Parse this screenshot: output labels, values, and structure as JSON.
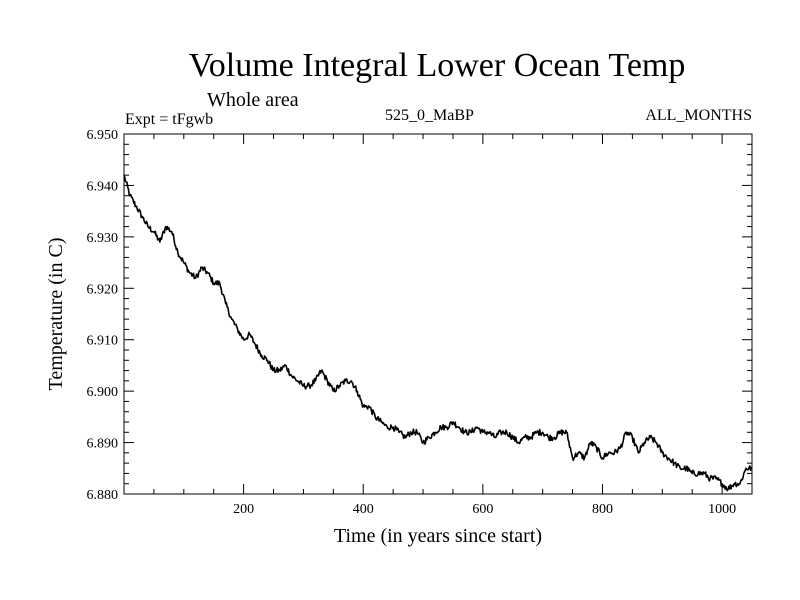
{
  "chart_data": {
    "type": "line",
    "title": "Volume Integral Lower Ocean Temp",
    "subtitle": "Whole area",
    "expt_label": "Expt = tFgwb",
    "run_label": "525_0_MaBP",
    "months_label": "ALL_MONTHS",
    "xlabel": "Time (in years since start)",
    "ylabel": "Temperature (in C)",
    "xlim": [
      0,
      1050
    ],
    "ylim": [
      6.88,
      6.95
    ],
    "x_ticks": [
      200,
      400,
      600,
      800,
      1000
    ],
    "x_tick_labels": [
      "200",
      "400",
      "600",
      "800",
      "1000"
    ],
    "y_ticks": [
      6.88,
      6.89,
      6.9,
      6.91,
      6.92,
      6.93,
      6.94,
      6.95
    ],
    "y_tick_labels": [
      "6.880",
      "6.890",
      "6.900",
      "6.910",
      "6.920",
      "6.930",
      "6.940",
      "6.950"
    ],
    "grid": false,
    "series": [
      {
        "name": "Volume Integral Lower Ocean Temp",
        "x": [
          0,
          10,
          20,
          30,
          40,
          50,
          60,
          70,
          80,
          90,
          100,
          110,
          120,
          130,
          140,
          150,
          160,
          170,
          180,
          190,
          200,
          210,
          220,
          230,
          240,
          250,
          260,
          270,
          280,
          290,
          300,
          310,
          320,
          330,
          340,
          350,
          360,
          370,
          380,
          390,
          400,
          410,
          420,
          430,
          440,
          450,
          460,
          470,
          480,
          490,
          500,
          510,
          520,
          530,
          540,
          550,
          560,
          570,
          580,
          590,
          600,
          610,
          620,
          630,
          640,
          650,
          660,
          670,
          680,
          690,
          700,
          710,
          720,
          730,
          740,
          750,
          760,
          770,
          780,
          790,
          800,
          810,
          820,
          830,
          840,
          850,
          860,
          870,
          880,
          890,
          900,
          910,
          920,
          930,
          940,
          950,
          960,
          970,
          980,
          990,
          1000,
          1010,
          1020,
          1030,
          1040,
          1050
        ],
        "values": [
          6.942,
          6.938,
          6.936,
          6.934,
          6.932,
          6.931,
          6.929,
          6.932,
          6.931,
          6.927,
          6.925,
          6.923,
          6.922,
          6.924,
          6.923,
          6.921,
          6.921,
          6.917,
          6.914,
          6.912,
          6.91,
          6.911,
          6.909,
          6.907,
          6.906,
          6.904,
          6.904,
          6.905,
          6.903,
          6.902,
          6.901,
          6.901,
          6.902,
          6.904,
          6.902,
          6.9,
          6.901,
          6.902,
          6.902,
          6.9,
          6.897,
          6.897,
          6.895,
          6.894,
          6.893,
          6.893,
          6.892,
          6.891,
          6.892,
          6.892,
          6.89,
          6.891,
          6.892,
          6.893,
          6.893,
          6.894,
          6.893,
          6.892,
          6.892,
          6.893,
          6.892,
          6.892,
          6.891,
          6.892,
          6.892,
          6.891,
          6.89,
          6.891,
          6.891,
          6.892,
          6.892,
          6.891,
          6.891,
          6.892,
          6.892,
          6.887,
          6.888,
          6.887,
          6.89,
          6.889,
          6.887,
          6.888,
          6.888,
          6.889,
          6.892,
          6.891,
          6.888,
          6.89,
          6.891,
          6.89,
          6.888,
          6.887,
          6.886,
          6.885,
          6.885,
          6.884,
          6.884,
          6.884,
          6.883,
          6.883,
          6.882,
          6.881,
          6.882,
          6.882,
          6.885,
          6.885
        ]
      }
    ]
  }
}
